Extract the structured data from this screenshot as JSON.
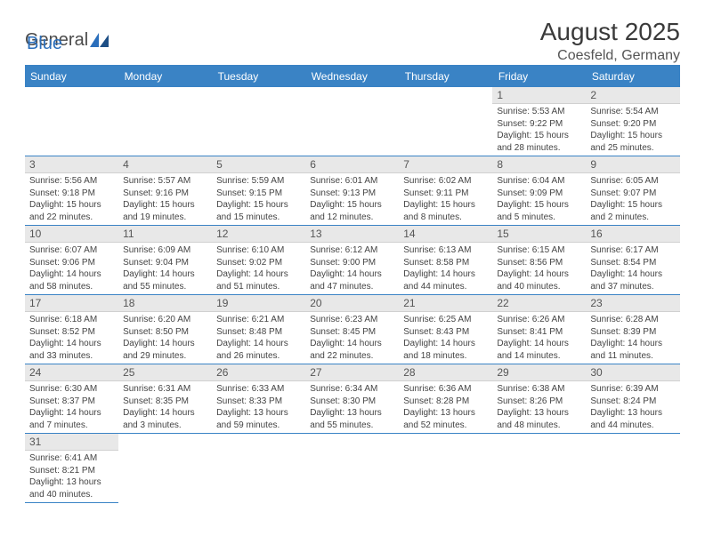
{
  "logo": {
    "general": "General",
    "blue": "Blue"
  },
  "title": "August 2025",
  "location": "Coesfeld, Germany",
  "headers": [
    "Sunday",
    "Monday",
    "Tuesday",
    "Wednesday",
    "Thursday",
    "Friday",
    "Saturday"
  ],
  "colors": {
    "header_bg": "#3a83c5",
    "header_fg": "#ffffff",
    "daynum_bg": "#e8e8e8",
    "border": "#3a83c5",
    "text": "#444444",
    "title_color": "#3a3a3a",
    "logo_blue": "#2a6ebb"
  },
  "weeks": [
    [
      null,
      null,
      null,
      null,
      null,
      {
        "n": "1",
        "sr": "Sunrise: 5:53 AM",
        "ss": "Sunset: 9:22 PM",
        "dl": "Daylight: 15 hours and 28 minutes."
      },
      {
        "n": "2",
        "sr": "Sunrise: 5:54 AM",
        "ss": "Sunset: 9:20 PM",
        "dl": "Daylight: 15 hours and 25 minutes."
      }
    ],
    [
      {
        "n": "3",
        "sr": "Sunrise: 5:56 AM",
        "ss": "Sunset: 9:18 PM",
        "dl": "Daylight: 15 hours and 22 minutes."
      },
      {
        "n": "4",
        "sr": "Sunrise: 5:57 AM",
        "ss": "Sunset: 9:16 PM",
        "dl": "Daylight: 15 hours and 19 minutes."
      },
      {
        "n": "5",
        "sr": "Sunrise: 5:59 AM",
        "ss": "Sunset: 9:15 PM",
        "dl": "Daylight: 15 hours and 15 minutes."
      },
      {
        "n": "6",
        "sr": "Sunrise: 6:01 AM",
        "ss": "Sunset: 9:13 PM",
        "dl": "Daylight: 15 hours and 12 minutes."
      },
      {
        "n": "7",
        "sr": "Sunrise: 6:02 AM",
        "ss": "Sunset: 9:11 PM",
        "dl": "Daylight: 15 hours and 8 minutes."
      },
      {
        "n": "8",
        "sr": "Sunrise: 6:04 AM",
        "ss": "Sunset: 9:09 PM",
        "dl": "Daylight: 15 hours and 5 minutes."
      },
      {
        "n": "9",
        "sr": "Sunrise: 6:05 AM",
        "ss": "Sunset: 9:07 PM",
        "dl": "Daylight: 15 hours and 2 minutes."
      }
    ],
    [
      {
        "n": "10",
        "sr": "Sunrise: 6:07 AM",
        "ss": "Sunset: 9:06 PM",
        "dl": "Daylight: 14 hours and 58 minutes."
      },
      {
        "n": "11",
        "sr": "Sunrise: 6:09 AM",
        "ss": "Sunset: 9:04 PM",
        "dl": "Daylight: 14 hours and 55 minutes."
      },
      {
        "n": "12",
        "sr": "Sunrise: 6:10 AM",
        "ss": "Sunset: 9:02 PM",
        "dl": "Daylight: 14 hours and 51 minutes."
      },
      {
        "n": "13",
        "sr": "Sunrise: 6:12 AM",
        "ss": "Sunset: 9:00 PM",
        "dl": "Daylight: 14 hours and 47 minutes."
      },
      {
        "n": "14",
        "sr": "Sunrise: 6:13 AM",
        "ss": "Sunset: 8:58 PM",
        "dl": "Daylight: 14 hours and 44 minutes."
      },
      {
        "n": "15",
        "sr": "Sunrise: 6:15 AM",
        "ss": "Sunset: 8:56 PM",
        "dl": "Daylight: 14 hours and 40 minutes."
      },
      {
        "n": "16",
        "sr": "Sunrise: 6:17 AM",
        "ss": "Sunset: 8:54 PM",
        "dl": "Daylight: 14 hours and 37 minutes."
      }
    ],
    [
      {
        "n": "17",
        "sr": "Sunrise: 6:18 AM",
        "ss": "Sunset: 8:52 PM",
        "dl": "Daylight: 14 hours and 33 minutes."
      },
      {
        "n": "18",
        "sr": "Sunrise: 6:20 AM",
        "ss": "Sunset: 8:50 PM",
        "dl": "Daylight: 14 hours and 29 minutes."
      },
      {
        "n": "19",
        "sr": "Sunrise: 6:21 AM",
        "ss": "Sunset: 8:48 PM",
        "dl": "Daylight: 14 hours and 26 minutes."
      },
      {
        "n": "20",
        "sr": "Sunrise: 6:23 AM",
        "ss": "Sunset: 8:45 PM",
        "dl": "Daylight: 14 hours and 22 minutes."
      },
      {
        "n": "21",
        "sr": "Sunrise: 6:25 AM",
        "ss": "Sunset: 8:43 PM",
        "dl": "Daylight: 14 hours and 18 minutes."
      },
      {
        "n": "22",
        "sr": "Sunrise: 6:26 AM",
        "ss": "Sunset: 8:41 PM",
        "dl": "Daylight: 14 hours and 14 minutes."
      },
      {
        "n": "23",
        "sr": "Sunrise: 6:28 AM",
        "ss": "Sunset: 8:39 PM",
        "dl": "Daylight: 14 hours and 11 minutes."
      }
    ],
    [
      {
        "n": "24",
        "sr": "Sunrise: 6:30 AM",
        "ss": "Sunset: 8:37 PM",
        "dl": "Daylight: 14 hours and 7 minutes."
      },
      {
        "n": "25",
        "sr": "Sunrise: 6:31 AM",
        "ss": "Sunset: 8:35 PM",
        "dl": "Daylight: 14 hours and 3 minutes."
      },
      {
        "n": "26",
        "sr": "Sunrise: 6:33 AM",
        "ss": "Sunset: 8:33 PM",
        "dl": "Daylight: 13 hours and 59 minutes."
      },
      {
        "n": "27",
        "sr": "Sunrise: 6:34 AM",
        "ss": "Sunset: 8:30 PM",
        "dl": "Daylight: 13 hours and 55 minutes."
      },
      {
        "n": "28",
        "sr": "Sunrise: 6:36 AM",
        "ss": "Sunset: 8:28 PM",
        "dl": "Daylight: 13 hours and 52 minutes."
      },
      {
        "n": "29",
        "sr": "Sunrise: 6:38 AM",
        "ss": "Sunset: 8:26 PM",
        "dl": "Daylight: 13 hours and 48 minutes."
      },
      {
        "n": "30",
        "sr": "Sunrise: 6:39 AM",
        "ss": "Sunset: 8:24 PM",
        "dl": "Daylight: 13 hours and 44 minutes."
      }
    ],
    [
      {
        "n": "31",
        "sr": "Sunrise: 6:41 AM",
        "ss": "Sunset: 8:21 PM",
        "dl": "Daylight: 13 hours and 40 minutes."
      },
      null,
      null,
      null,
      null,
      null,
      null
    ]
  ]
}
